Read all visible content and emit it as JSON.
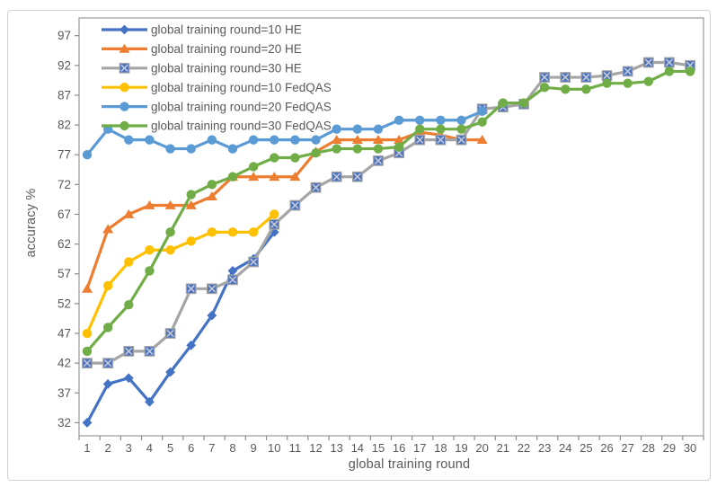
{
  "chart_data": {
    "type": "line",
    "title": "",
    "xlabel": "global training round",
    "ylabel": "accuracy %",
    "x": [
      1,
      2,
      3,
      4,
      5,
      6,
      7,
      8,
      9,
      10,
      11,
      12,
      13,
      14,
      15,
      16,
      17,
      18,
      19,
      20,
      21,
      22,
      23,
      24,
      25,
      26,
      27,
      28,
      29,
      30
    ],
    "y_ticks": [
      32,
      37,
      42,
      47,
      52,
      57,
      62,
      67,
      72,
      77,
      82,
      87,
      92,
      97
    ],
    "ylim": [
      30,
      100
    ],
    "grid": false,
    "legend_position": "top-left-inside",
    "series": [
      {
        "name": "global training round=10 HE",
        "color": "#4472C4",
        "marker": "diamond",
        "values": [
          32,
          38.5,
          39.5,
          35.5,
          40.5,
          45,
          50,
          57.5,
          59.5,
          64
        ]
      },
      {
        "name": "global training round=20 HE",
        "color": "#ED7D31",
        "marker": "triangle",
        "values": [
          54.5,
          64.5,
          67,
          68.5,
          68.5,
          68.5,
          70,
          73.3,
          73.3,
          73.3,
          73.3,
          77.5,
          79.5,
          79.5,
          79.5,
          79.5,
          80.8,
          80.3,
          79.5,
          79.5
        ]
      },
      {
        "name": "global training round=30 HE",
        "color": "#A5A5A5",
        "marker": "square-x",
        "marker_fill": "#4C72BE",
        "marker_x_color": "#C6CBD6",
        "values": [
          42,
          42,
          44,
          44,
          47,
          54.5,
          54.5,
          56,
          59,
          65.3,
          68.5,
          71.5,
          73.3,
          73.3,
          76,
          77.3,
          79.5,
          79.5,
          79.5,
          84.7,
          85,
          85.5,
          90,
          90,
          90,
          90.3,
          91,
          92.5,
          92.5,
          92
        ]
      },
      {
        "name": "global training round=10 FedQAS",
        "color": "#FFC000",
        "marker": "circle",
        "values": [
          47,
          55,
          59,
          61,
          61,
          62.5,
          64,
          64,
          64,
          67
        ]
      },
      {
        "name": "global training round=20 FedQAS",
        "color": "#5B9BD5",
        "marker": "circle",
        "values": [
          77,
          81.3,
          79.5,
          79.5,
          78,
          78,
          79.5,
          78,
          79.5,
          79.5,
          79.5,
          79.5,
          81.3,
          81.3,
          81.3,
          82.8,
          82.8,
          82.8,
          82.8,
          84.3
        ]
      },
      {
        "name": "global training round=30 FedQAS",
        "color": "#70AD47",
        "marker": "circle",
        "values": [
          44,
          48,
          51.8,
          57.5,
          64,
          70.3,
          72,
          73.3,
          75,
          76.5,
          76.5,
          77.3,
          78,
          78,
          78,
          78.3,
          81.3,
          81.3,
          81.3,
          82.5,
          85.7,
          85.7,
          88.3,
          88,
          88,
          89,
          89,
          89.3,
          91,
          91
        ]
      }
    ]
  },
  "style": {
    "text_color": "#595959",
    "axis_line_color": "#9a9a9a",
    "tick_color": "#8c8c8c",
    "background": "#ffffff"
  }
}
